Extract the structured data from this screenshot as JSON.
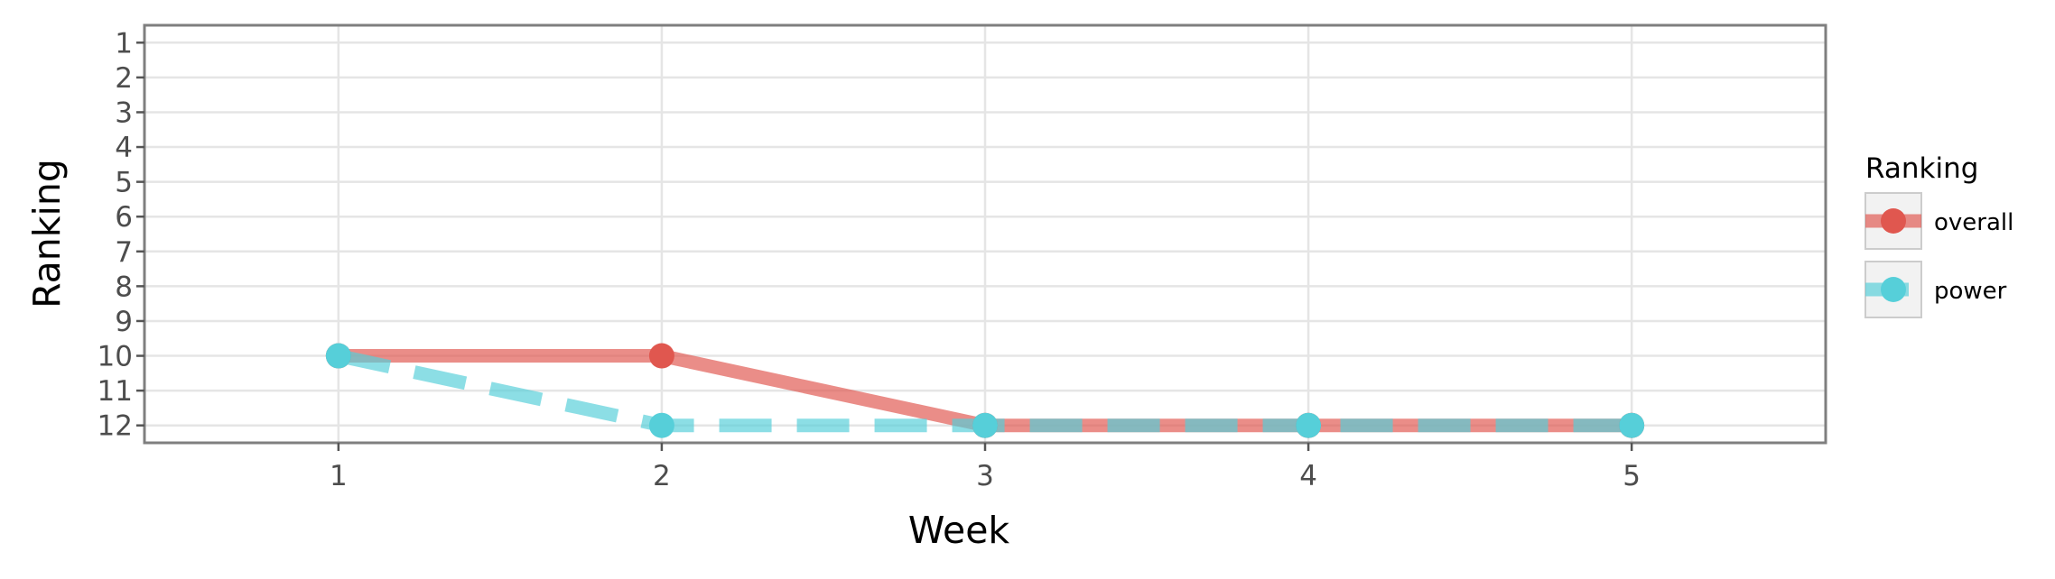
{
  "chart_data": {
    "type": "line",
    "title": "",
    "xlabel": "Week",
    "ylabel": "Ranking",
    "x": [
      1,
      2,
      3,
      4,
      5
    ],
    "x_ticks": [
      "1",
      "2",
      "3",
      "4",
      "5"
    ],
    "y_ticks": [
      "1",
      "2",
      "3",
      "4",
      "5",
      "6",
      "7",
      "8",
      "9",
      "10",
      "11",
      "12"
    ],
    "xlim": [
      0.4,
      5.6
    ],
    "ylim": [
      12.5,
      0.5
    ],
    "y_reversed": true,
    "grid": true,
    "legend": {
      "title": "Ranking",
      "position": "right"
    },
    "series": [
      {
        "name": "overall",
        "values": [
          10,
          10,
          12,
          12,
          12
        ],
        "color": "#e0574f",
        "line_style": "solid"
      },
      {
        "name": "power",
        "values": [
          10,
          12,
          12,
          12,
          12
        ],
        "color": "#56cfd9",
        "line_style": "dashed"
      }
    ]
  }
}
